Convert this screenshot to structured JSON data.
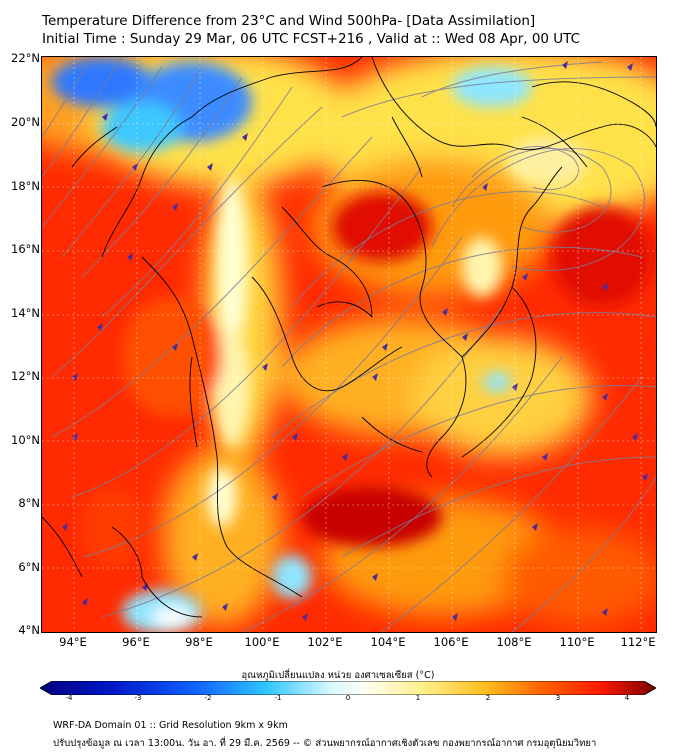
{
  "title": {
    "line1": "Temperature Difference from 23°C and Wind 500hPa- [Data Assimilation]",
    "line2": "Initial Time : Sunday 29 Mar, 06 UTC FCST+216 , Valid at ::  Wed 08 Apr, 00 UTC"
  },
  "axes": {
    "lat_labels": [
      "22°N",
      "20°N",
      "18°N",
      "16°N",
      "14°N",
      "12°N",
      "10°N",
      "8°N",
      "6°N",
      "4°N"
    ],
    "lon_labels": [
      "94°E",
      "96°E",
      "98°E",
      "100°E",
      "102°E",
      "104°E",
      "106°E",
      "108°E",
      "110°E",
      "112°E"
    ],
    "lat_range": [
      4,
      22
    ],
    "lon_range": [
      93,
      112.5
    ]
  },
  "colorbar": {
    "title": "อุณหภูมิเปลี่ยนแปลง หน่วย องศาเซลเซียส (°C)",
    "ticks": [
      "-4",
      "-3",
      "-2",
      "-1",
      "0",
      "1",
      "2",
      "3",
      "4"
    ],
    "range": [
      -4,
      4
    ]
  },
  "footer": {
    "line1": "WRF-DA Domain 01 :: Grid Resolution 9km x 9km",
    "line2": "ปรับปรุงข้อมูล ณ เวลา 13:00น. วัน อา. ที่ 29 มี.ค. 2569 -- © ส่วนพยากรณ์อากาศเชิงตัวเลข กองพยากรณ์อากาศ กรมอุตุนิยมวิทยา"
  },
  "colors": {
    "warm_dark": "#c80000",
    "warm": "#ff2a00",
    "orange": "#ff8c00",
    "yellow": "#ffe24a",
    "pale": "#ffffd2",
    "cool": "#2f78ff",
    "cyan": "#3cc8ff",
    "streamline": "#5a3aa8",
    "border": "#000000"
  }
}
